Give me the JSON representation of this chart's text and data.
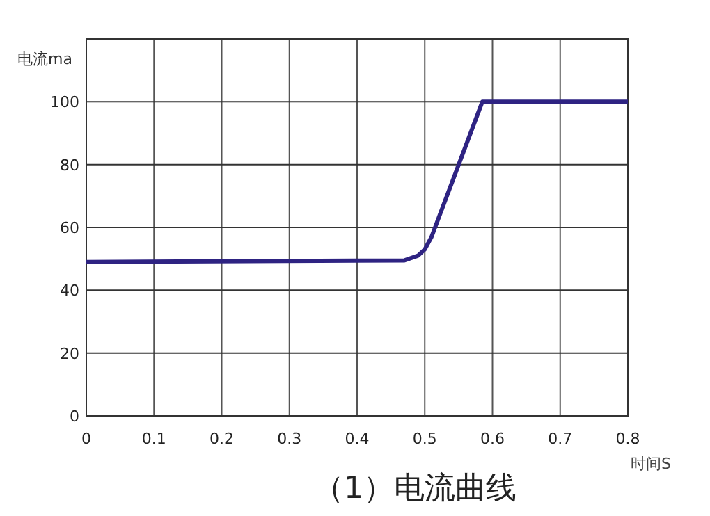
{
  "chart_data": {
    "type": "line",
    "title": "（1）电流曲线",
    "xlabel": "时间S",
    "ylabel": "电流ma",
    "x": [
      0,
      0.47,
      0.49,
      0.5,
      0.51,
      0.585,
      0.8
    ],
    "series": [
      {
        "color": "#2e2382",
        "values": [
          49,
          49.5,
          51,
          53,
          57,
          100,
          100
        ]
      }
    ],
    "xlim": [
      0,
      0.8
    ],
    "xticks": [
      0,
      0.1,
      0.2,
      0.3,
      0.4,
      0.5,
      0.6,
      0.7,
      0.8
    ],
    "ylim": [
      0,
      120
    ],
    "yticks": [
      0,
      20,
      40,
      60,
      80,
      100,
      {
        "value": 120,
        "label": null
      }
    ],
    "grid": true,
    "marker": "none",
    "line_style": "solid"
  }
}
